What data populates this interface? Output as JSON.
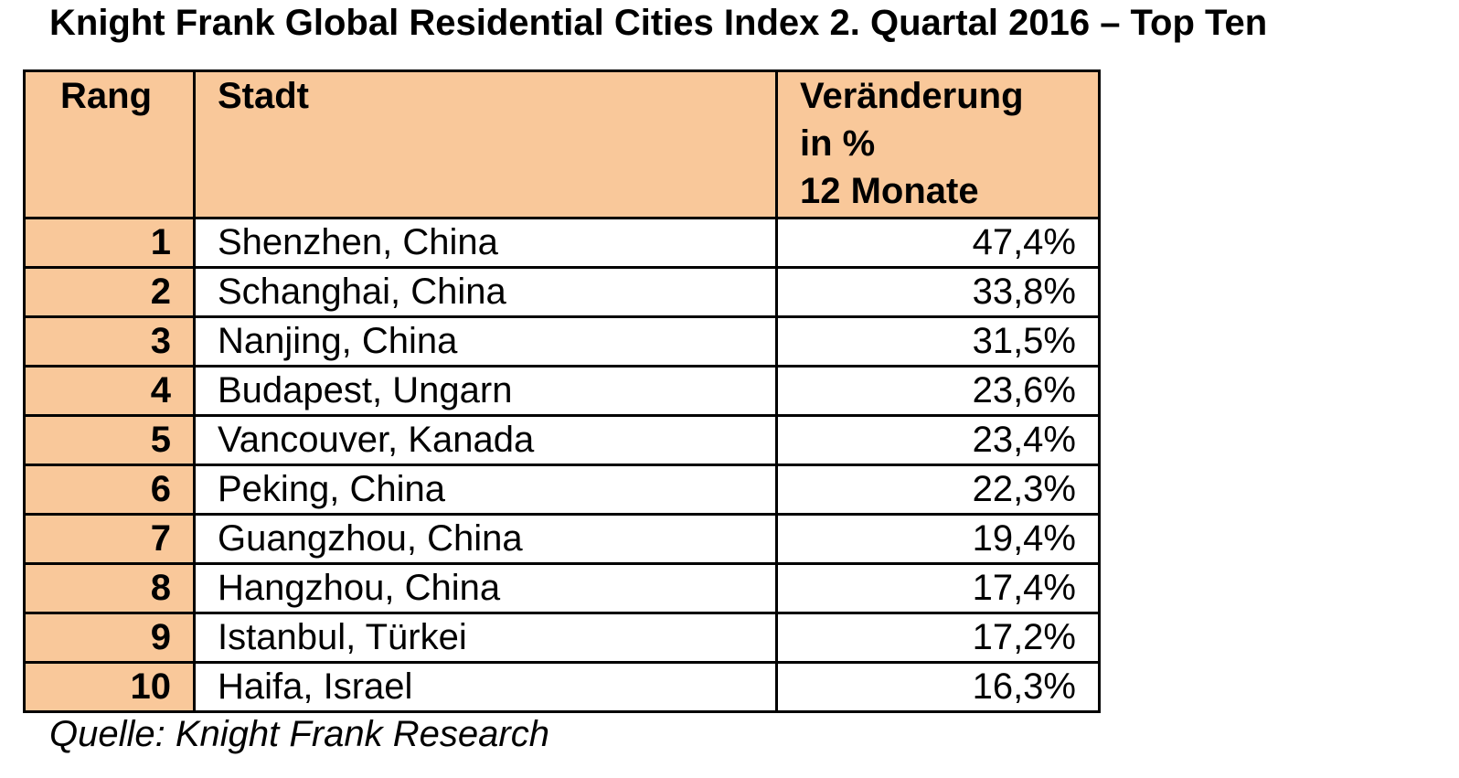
{
  "title": "Knight Frank Global Residential Cities Index 2. Quartal 2016 – Top Ten",
  "table": {
    "headers": {
      "rank": "Rang",
      "city": "Stadt",
      "change_line1": "Veränderung",
      "change_line2": "in %",
      "change_line3": "12 Monate"
    },
    "rows": [
      {
        "rank": "1",
        "city": "Shenzhen, China",
        "change": "47,4%"
      },
      {
        "rank": "2",
        "city": "Schanghai, China",
        "change": "33,8%"
      },
      {
        "rank": "3",
        "city": "Nanjing, China",
        "change": "31,5%"
      },
      {
        "rank": "4",
        "city": "Budapest, Ungarn",
        "change": "23,6%"
      },
      {
        "rank": "5",
        "city": "Vancouver, Kanada",
        "change": "23,4%"
      },
      {
        "rank": "6",
        "city": "Peking, China",
        "change": "22,3%"
      },
      {
        "rank": "7",
        "city": "Guangzhou, China",
        "change": "19,4%"
      },
      {
        "rank": "8",
        "city": "Hangzhou, China",
        "change": "17,4%"
      },
      {
        "rank": "9",
        "city": "Istanbul, Türkei",
        "change": "17,2%"
      },
      {
        "rank": "10",
        "city": "Haifa, Israel",
        "change": "16,3%"
      }
    ]
  },
  "source": "Quelle: Knight Frank Research",
  "colors": {
    "header_fill": "#f9c89a",
    "border": "#000000"
  }
}
